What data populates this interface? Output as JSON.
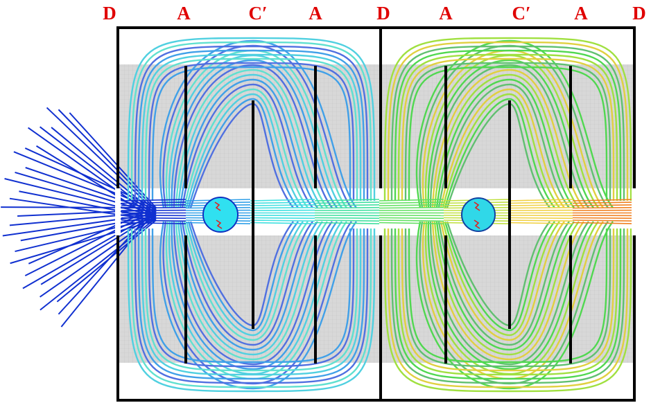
{
  "labels": [
    "D",
    "A",
    "C′",
    "A",
    "D",
    "A",
    "C′",
    "A",
    "D"
  ]
}
